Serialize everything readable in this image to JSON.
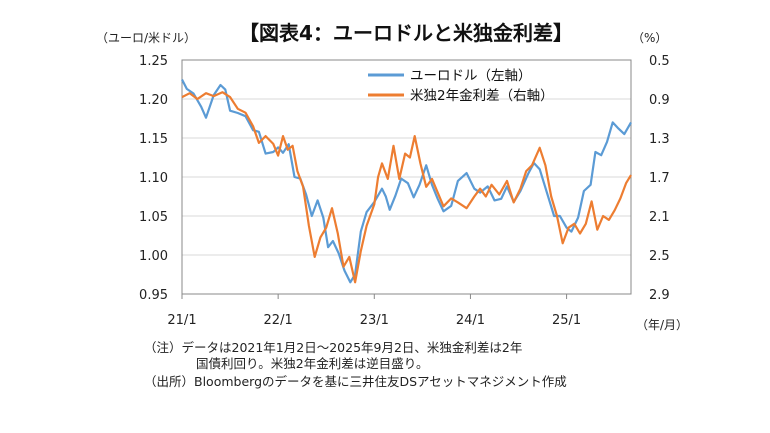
{
  "chart_data": {
    "type": "line",
    "title": "【図表4：ユーロドルと米独金利差】",
    "left_unit": "（ユーロ/米ドル）",
    "right_unit": "（%）",
    "x_unit": "（年/月）",
    "x_ticks": [
      "21/1",
      "22/1",
      "23/1",
      "24/1",
      "25/1"
    ],
    "y_left": {
      "ticks": [
        "1.25",
        "1.20",
        "1.15",
        "1.10",
        "1.05",
        "1.00",
        "0.95"
      ],
      "min": 0.95,
      "max": 1.25
    },
    "y_right": {
      "ticks": [
        "0.5",
        "0.9",
        "1.3",
        "1.7",
        "2.1",
        "2.5",
        "2.9"
      ],
      "min": 0.5,
      "max": 2.9,
      "inverted": true
    },
    "x_range": [
      2021.0,
      2025.67
    ],
    "legend": [
      {
        "label": "ユーロドル（左軸）",
        "color": "#5B9BD5"
      },
      {
        "label": "米独2年金利差（右軸）",
        "color": "#ED7D31"
      }
    ],
    "series": [
      {
        "name": "ユーロドル（左軸）",
        "axis": "left",
        "color": "#5B9BD5",
        "points": [
          [
            2021.0,
            1.225
          ],
          [
            2021.05,
            1.213
          ],
          [
            2021.12,
            1.207
          ],
          [
            2021.2,
            1.19
          ],
          [
            2021.25,
            1.176
          ],
          [
            2021.33,
            1.205
          ],
          [
            2021.4,
            1.218
          ],
          [
            2021.45,
            1.212
          ],
          [
            2021.5,
            1.185
          ],
          [
            2021.58,
            1.182
          ],
          [
            2021.66,
            1.178
          ],
          [
            2021.74,
            1.16
          ],
          [
            2021.8,
            1.158
          ],
          [
            2021.87,
            1.13
          ],
          [
            2021.95,
            1.132
          ],
          [
            2022.0,
            1.138
          ],
          [
            2022.05,
            1.131
          ],
          [
            2022.11,
            1.142
          ],
          [
            2022.17,
            1.1
          ],
          [
            2022.23,
            1.098
          ],
          [
            2022.29,
            1.078
          ],
          [
            2022.35,
            1.05
          ],
          [
            2022.41,
            1.07
          ],
          [
            2022.47,
            1.048
          ],
          [
            2022.52,
            1.01
          ],
          [
            2022.57,
            1.018
          ],
          [
            2022.63,
            1.002
          ],
          [
            2022.69,
            0.98
          ],
          [
            2022.75,
            0.965
          ],
          [
            2022.8,
            0.975
          ],
          [
            2022.86,
            1.03
          ],
          [
            2022.92,
            1.055
          ],
          [
            2023.0,
            1.068
          ],
          [
            2023.08,
            1.085
          ],
          [
            2023.12,
            1.075
          ],
          [
            2023.16,
            1.058
          ],
          [
            2023.22,
            1.076
          ],
          [
            2023.28,
            1.098
          ],
          [
            2023.35,
            1.092
          ],
          [
            2023.41,
            1.074
          ],
          [
            2023.47,
            1.09
          ],
          [
            2023.54,
            1.115
          ],
          [
            2023.6,
            1.09
          ],
          [
            2023.66,
            1.072
          ],
          [
            2023.72,
            1.056
          ],
          [
            2023.8,
            1.063
          ],
          [
            2023.87,
            1.095
          ],
          [
            2023.96,
            1.105
          ],
          [
            2024.04,
            1.085
          ],
          [
            2024.1,
            1.08
          ],
          [
            2024.18,
            1.088
          ],
          [
            2024.25,
            1.07
          ],
          [
            2024.32,
            1.072
          ],
          [
            2024.38,
            1.088
          ],
          [
            2024.45,
            1.068
          ],
          [
            2024.52,
            1.082
          ],
          [
            2024.6,
            1.104
          ],
          [
            2024.66,
            1.118
          ],
          [
            2024.72,
            1.11
          ],
          [
            2024.8,
            1.078
          ],
          [
            2024.87,
            1.05
          ],
          [
            2024.93,
            1.05
          ],
          [
            2025.0,
            1.035
          ],
          [
            2025.05,
            1.03
          ],
          [
            2025.12,
            1.048
          ],
          [
            2025.18,
            1.082
          ],
          [
            2025.25,
            1.09
          ],
          [
            2025.3,
            1.132
          ],
          [
            2025.36,
            1.128
          ],
          [
            2025.42,
            1.145
          ],
          [
            2025.48,
            1.17
          ],
          [
            2025.54,
            1.162
          ],
          [
            2025.6,
            1.155
          ],
          [
            2025.67,
            1.17
          ]
        ]
      },
      {
        "name": "米独2年金利差（右軸）",
        "axis": "right",
        "color": "#ED7D31",
        "points": [
          [
            2021.0,
            0.88
          ],
          [
            2021.08,
            0.84
          ],
          [
            2021.16,
            0.9
          ],
          [
            2021.25,
            0.84
          ],
          [
            2021.33,
            0.87
          ],
          [
            2021.42,
            0.83
          ],
          [
            2021.5,
            0.88
          ],
          [
            2021.58,
            1.0
          ],
          [
            2021.66,
            1.04
          ],
          [
            2021.74,
            1.18
          ],
          [
            2021.8,
            1.35
          ],
          [
            2021.87,
            1.28
          ],
          [
            2021.95,
            1.36
          ],
          [
            2022.0,
            1.48
          ],
          [
            2022.05,
            1.28
          ],
          [
            2022.1,
            1.42
          ],
          [
            2022.15,
            1.38
          ],
          [
            2022.2,
            1.64
          ],
          [
            2022.26,
            1.8
          ],
          [
            2022.32,
            2.2
          ],
          [
            2022.38,
            2.52
          ],
          [
            2022.44,
            2.32
          ],
          [
            2022.5,
            2.22
          ],
          [
            2022.56,
            2.02
          ],
          [
            2022.62,
            2.28
          ],
          [
            2022.68,
            2.62
          ],
          [
            2022.74,
            2.52
          ],
          [
            2022.8,
            2.78
          ],
          [
            2022.86,
            2.46
          ],
          [
            2022.92,
            2.2
          ],
          [
            2023.0,
            1.98
          ],
          [
            2023.04,
            1.7
          ],
          [
            2023.08,
            1.56
          ],
          [
            2023.14,
            1.72
          ],
          [
            2023.2,
            1.38
          ],
          [
            2023.26,
            1.72
          ],
          [
            2023.32,
            1.46
          ],
          [
            2023.37,
            1.5
          ],
          [
            2023.42,
            1.28
          ],
          [
            2023.48,
            1.56
          ],
          [
            2023.54,
            1.8
          ],
          [
            2023.6,
            1.72
          ],
          [
            2023.66,
            1.86
          ],
          [
            2023.72,
            2.0
          ],
          [
            2023.8,
            1.92
          ],
          [
            2023.87,
            1.96
          ],
          [
            2023.96,
            2.02
          ],
          [
            2024.04,
            1.9
          ],
          [
            2024.1,
            1.82
          ],
          [
            2024.16,
            1.9
          ],
          [
            2024.22,
            1.78
          ],
          [
            2024.3,
            1.88
          ],
          [
            2024.38,
            1.74
          ],
          [
            2024.45,
            1.96
          ],
          [
            2024.52,
            1.82
          ],
          [
            2024.58,
            1.64
          ],
          [
            2024.64,
            1.58
          ],
          [
            2024.72,
            1.4
          ],
          [
            2024.78,
            1.58
          ],
          [
            2024.84,
            1.9
          ],
          [
            2024.9,
            2.1
          ],
          [
            2024.96,
            2.38
          ],
          [
            2025.02,
            2.22
          ],
          [
            2025.08,
            2.18
          ],
          [
            2025.14,
            2.28
          ],
          [
            2025.2,
            2.18
          ],
          [
            2025.26,
            1.95
          ],
          [
            2025.32,
            2.24
          ],
          [
            2025.38,
            2.1
          ],
          [
            2025.44,
            2.14
          ],
          [
            2025.5,
            2.04
          ],
          [
            2025.56,
            1.92
          ],
          [
            2025.62,
            1.76
          ],
          [
            2025.67,
            1.68
          ]
        ]
      }
    ]
  },
  "notes": {
    "line1": "（注）データは2021年1月2日～2025年9月2日、米独金利差は2年",
    "line2": "国債利回り。米独2年金利差は逆目盛り。",
    "line3": "（出所）Bloombergのデータを基に三井住友DSアセットマネジメント作成"
  }
}
